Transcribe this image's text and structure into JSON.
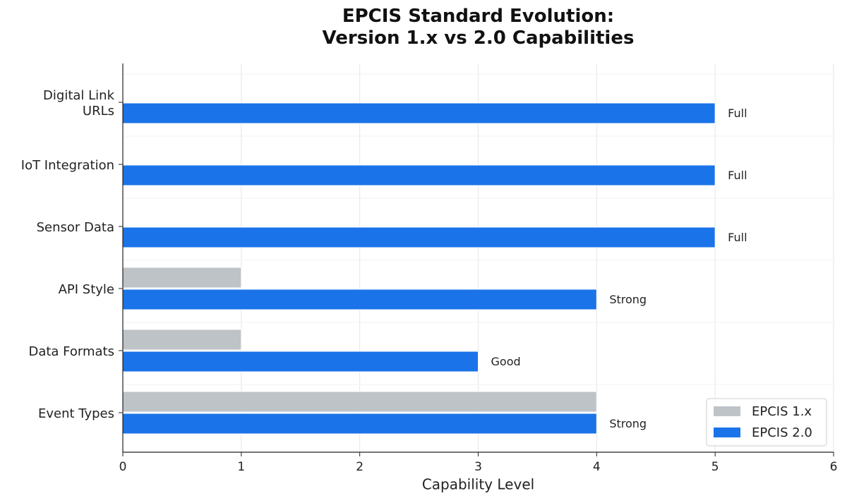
{
  "chart_data": {
    "type": "barh",
    "title": "EPCIS Standard Evolution:\nVersion 1.x vs 2.0 Capabilities",
    "xlabel": "Capability Level",
    "categories": [
      "Event Types",
      "Data Formats",
      "API Style",
      "Sensor Data",
      "IoT Integration",
      "Digital Link\nURLs"
    ],
    "series": [
      {
        "name": "EPCIS 1.x",
        "color": "#bdc3c7",
        "values": [
          4,
          1,
          1,
          0,
          0,
          0
        ]
      },
      {
        "name": "EPCIS 2.0",
        "color": "#1a73e8",
        "values": [
          4,
          3,
          4,
          5,
          5,
          5
        ],
        "value_labels": [
          "Strong",
          "Good",
          "Strong",
          "Full",
          "Full",
          "Full"
        ]
      }
    ],
    "xlim": [
      0,
      6
    ],
    "xticks": [
      0,
      1,
      2,
      3,
      4,
      5,
      6
    ],
    "grid": true,
    "legend": "lower right"
  }
}
